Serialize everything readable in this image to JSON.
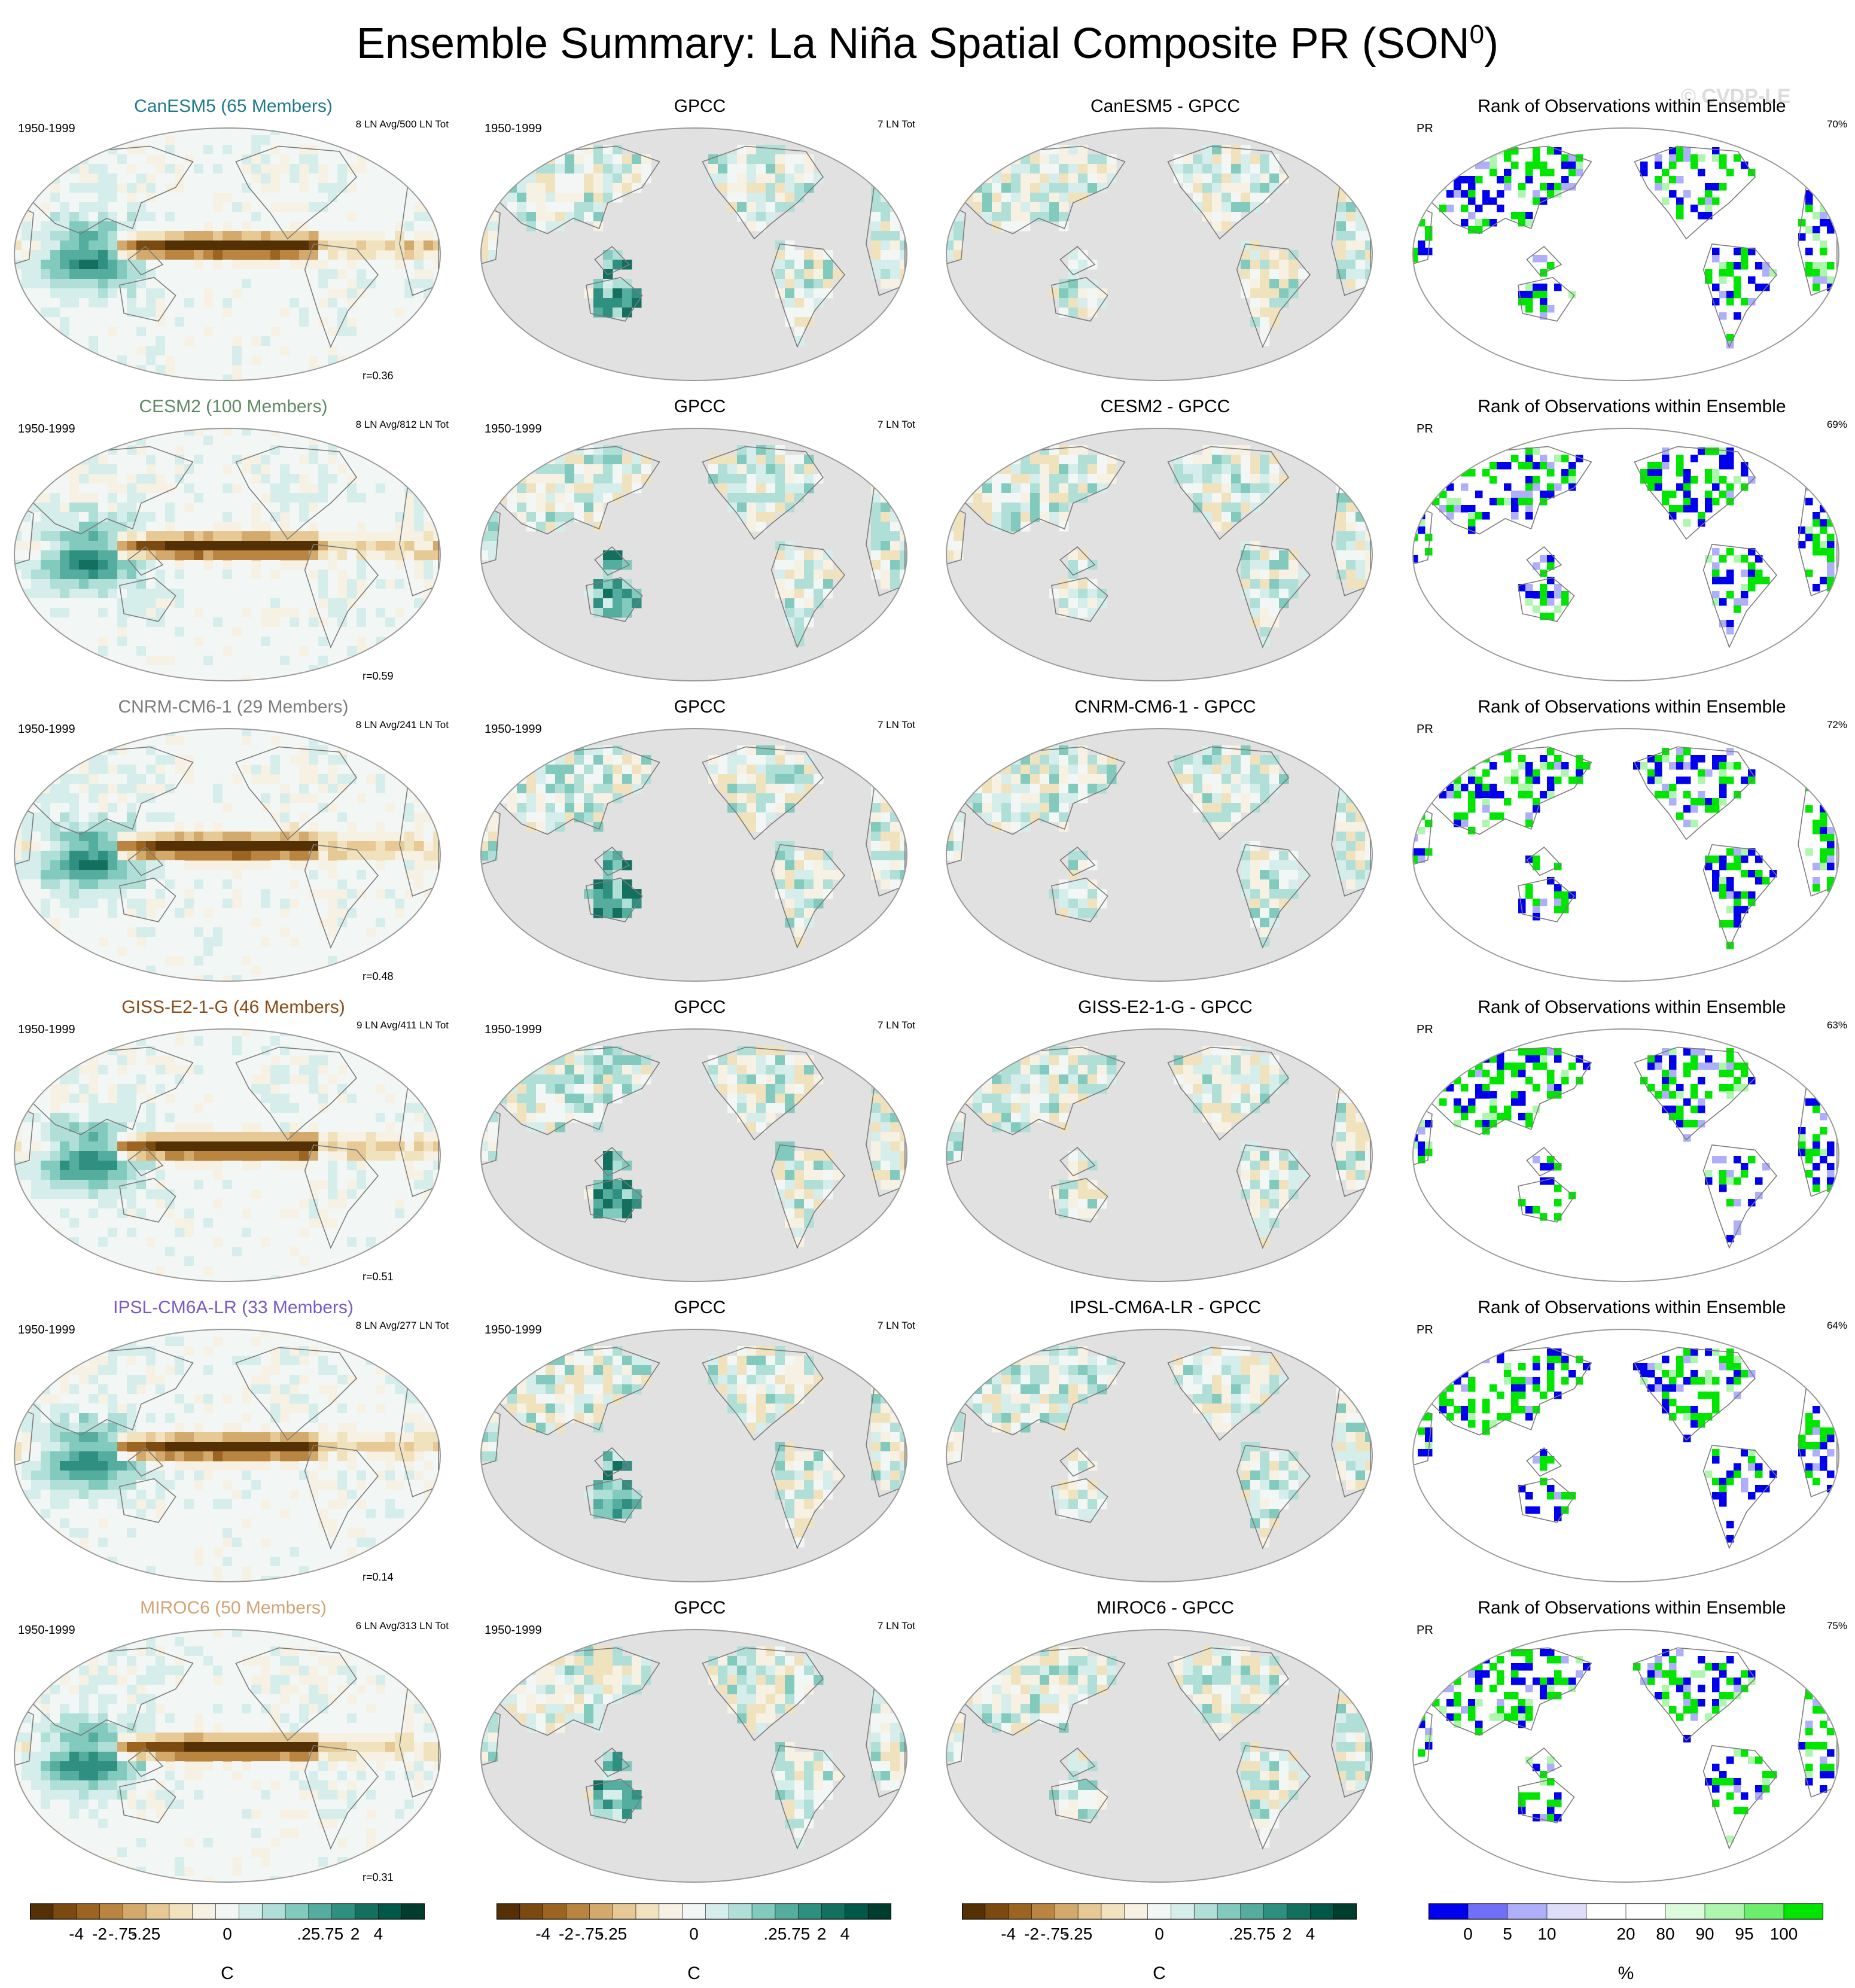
{
  "title": "Ensemble Summary: La Niña Spatial Composite PR (SON",
  "title_superscript": "0",
  "title_close": ")",
  "watermark": "© CVDP-LE",
  "period": "1950-1999",
  "obs_name": "GPCC",
  "obs_count": "7 LN Tot",
  "rank_title": "Rank of Observations within Ensemble",
  "rank_variable": "PR",
  "colors": {
    "ocean_missing": "#e1e1e1",
    "outline": "#7c7c7c",
    "rank_low": "#0000ee",
    "rank_high": "#00e600"
  },
  "chart_data": {
    "type": "heatmap",
    "rows": [
      {
        "model": "CanESM5 (65 Members)",
        "title_color": "#1f7a8c",
        "ln_counts": "8 LN Avg/500 LN Tot",
        "pattern_corr": "r=0.36",
        "diff_title": "CanESM5 - GPCC",
        "rank_pct": "70%"
      },
      {
        "model": "CESM2 (100 Members)",
        "title_color": "#5f8a63",
        "ln_counts": "8 LN Avg/812 LN Tot",
        "pattern_corr": "r=0.59",
        "diff_title": "CESM2 - GPCC",
        "rank_pct": "69%"
      },
      {
        "model": "CNRM-CM6-1 (29 Members)",
        "title_color": "#7d7d7d",
        "ln_counts": "8 LN Avg/241 LN Tot",
        "pattern_corr": "r=0.48",
        "diff_title": "CNRM-CM6-1 - GPCC",
        "rank_pct": "72%"
      },
      {
        "model": "GISS-E2-1-G (46 Members)",
        "title_color": "#8a4a14",
        "ln_counts": "9 LN Avg/411 LN Tot",
        "pattern_corr": "r=0.51",
        "diff_title": "GISS-E2-1-G - GPCC",
        "rank_pct": "63%"
      },
      {
        "model": "IPSL-CM6A-LR (33 Members)",
        "title_color": "#7a5bc4",
        "ln_counts": "8 LN Avg/277 LN Tot",
        "pattern_corr": "r=0.14",
        "diff_title": "IPSL-CM6A-LR - GPCC",
        "rank_pct": "64%"
      },
      {
        "model": "MIROC6 (50 Members)",
        "title_color": "#d2a374",
        "ln_counts": "6 LN Avg/313 LN Tot",
        "pattern_corr": "r=0.31",
        "diff_title": "MIROC6 - GPCC",
        "rank_pct": "75%"
      }
    ],
    "colorbar_anomaly": {
      "colors": [
        "#543005",
        "#7a4a10",
        "#9b6420",
        "#b98540",
        "#d3aa6c",
        "#e6c994",
        "#f1e2be",
        "#f7f1e3",
        "#f2f7f6",
        "#d6eeeb",
        "#b0dfd8",
        "#82c9be",
        "#55ad9f",
        "#2f8f80",
        "#13705f",
        "#005848",
        "#003d2f"
      ],
      "tick_labels": [
        "-4",
        "-2",
        "-.75",
        "-.25",
        "0",
        ".25",
        ".75",
        "2",
        "4"
      ],
      "unit": "C"
    },
    "colorbar_rank": {
      "colors": [
        "#0000ee",
        "#6f6ff7",
        "#aeaef9",
        "#dedefa",
        "#ffffff",
        "#ffffff",
        "#dcfadc",
        "#aef5ae",
        "#6cee6c",
        "#00e600"
      ],
      "tick_labels": [
        "0",
        "5",
        "10",
        "20",
        "80",
        "90",
        "95",
        "100"
      ],
      "unit": "%"
    }
  }
}
